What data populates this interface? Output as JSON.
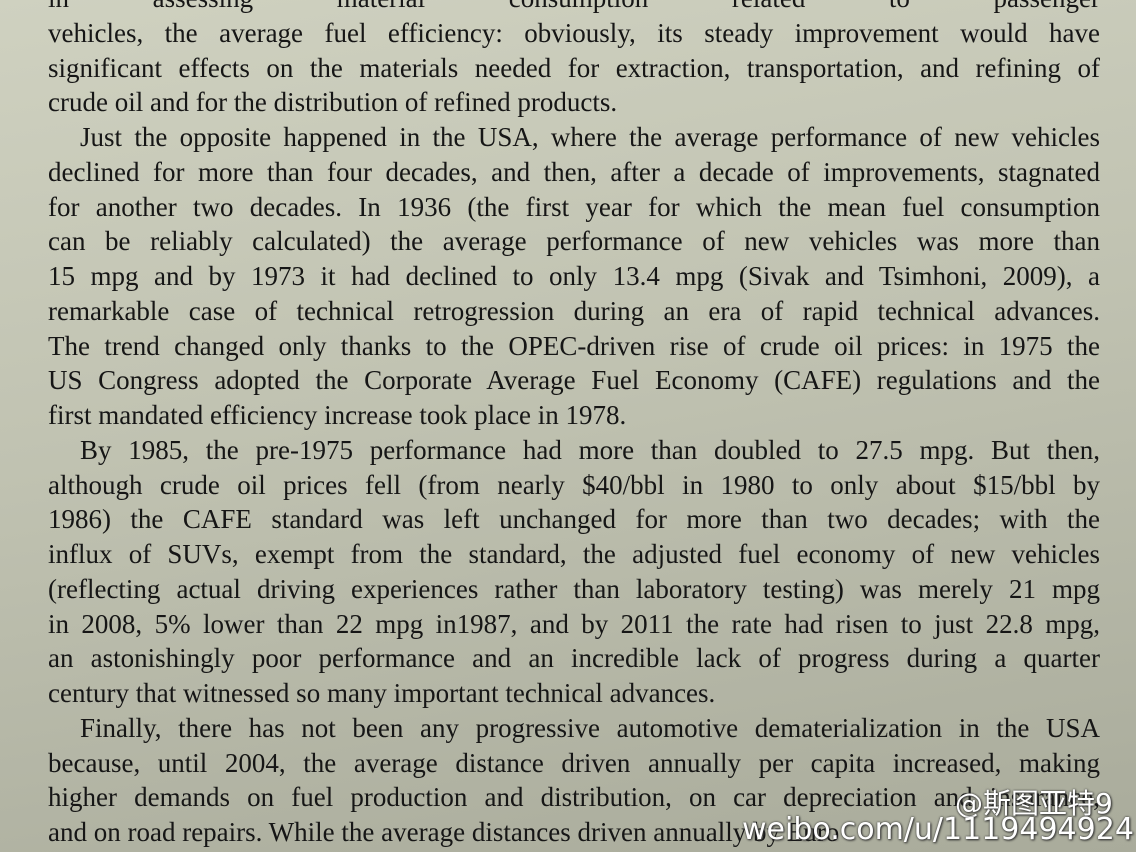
{
  "paragraphs": [
    {
      "lines": [
        "in assessing material consumption related to passenger",
        "vehicles, the average fuel efficiency: obviously, its steady improvement would have",
        "significant effects on the materials needed for extraction, transportation, and refining of",
        "crude oil and for the distribution of refined products."
      ]
    },
    {
      "lines": [
        "Just the opposite happened in the USA, where the average performance of new vehicles",
        "declined for more than four decades, and then, after a decade of improvements, stagnated",
        "for another two decades. In 1936 (the first year for which the mean fuel consumption",
        "can be reliably calculated) the average performance of new vehicles was more than",
        "15 mpg and by 1973 it had declined to only 13.4 mpg (Sivak and Tsimhoni, 2009), a",
        "remarkable case of technical retrogression during an era of rapid technical advances.",
        "The trend changed only thanks to the OPEC-driven rise of crude oil prices: in 1975 the",
        "US Congress adopted the Corporate Average Fuel Economy (CAFE) regulations and the",
        "first mandated efficiency increase took place in 1978."
      ]
    },
    {
      "lines": [
        "By 1985, the pre-1975 performance had more than doubled to 27.5 mpg. But then,",
        "although crude oil prices fell (from nearly $40/bbl in 1980 to only about $15/bbl by",
        "1986) the CAFE standard was left unchanged for more than two decades; with the",
        "influx of SUVs, exempt from the standard, the adjusted fuel economy of new vehicles",
        "(reflecting actual driving experiences rather than laboratory testing) was merely 21 mpg",
        "in 2008, 5% lower than 22 mpg in1987, and by 2011 the rate had risen to just 22.8 mpg,",
        "an astonishingly poor performance and an incredible lack of progress during a quarter",
        "century that witnessed so many important technical advances."
      ]
    },
    {
      "lines": [
        "Finally, there has not been any progressive automotive dematerialization in the USA",
        "because, until 2004, the average distance driven annually per capita increased, making",
        "higher demands on fuel production and distribution, on car depreciation and insurance,",
        "and on road repairs. While the average distances driven annually by Euro"
      ]
    }
  ],
  "watermark": {
    "handle": "@斯图亚特9",
    "url": "weibo.com/u/1119494924"
  }
}
